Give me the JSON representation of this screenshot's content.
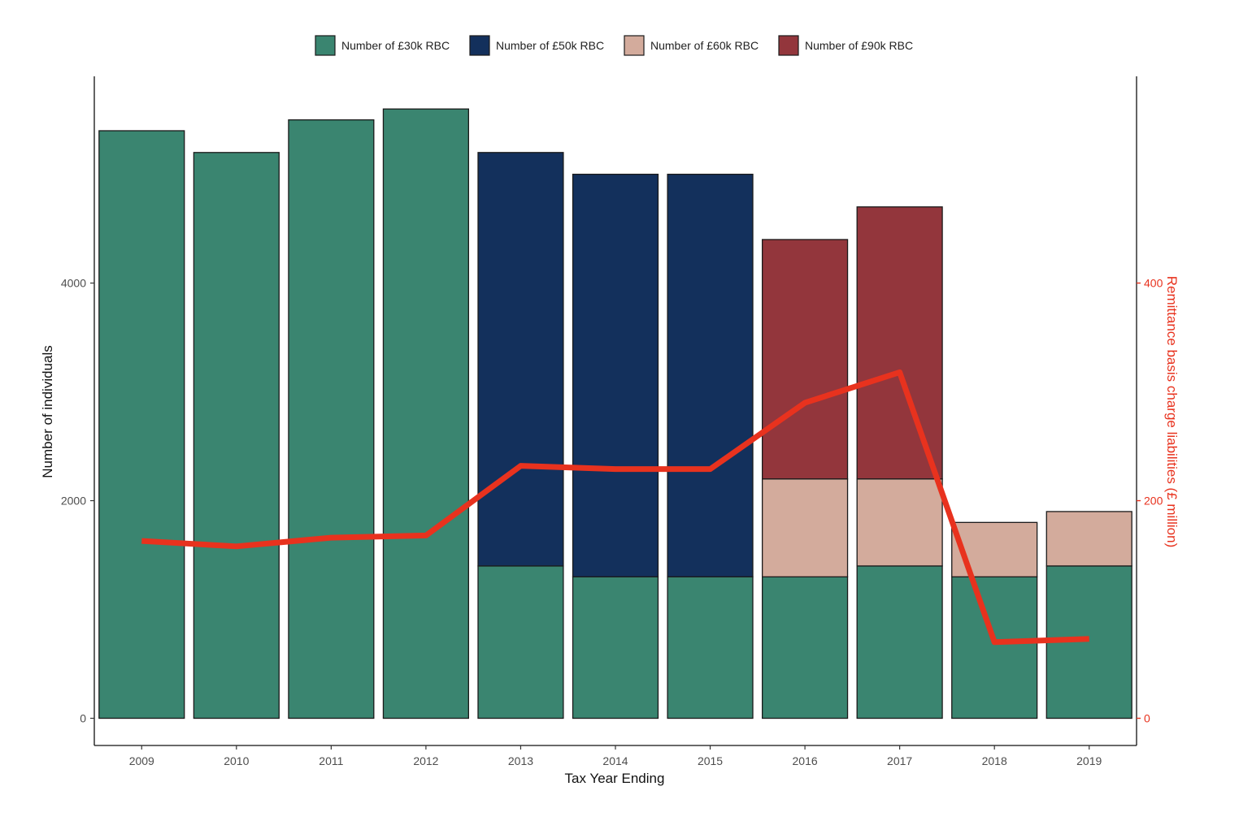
{
  "chart_data": {
    "type": "bar",
    "stacked": true,
    "title": "",
    "xlabel": "Tax Year Ending",
    "ylabel": "Number of individuals",
    "y2label": "Remittance basis charge liabilities (£ million)",
    "categories": [
      "2009",
      "2010",
      "2011",
      "2012",
      "2013",
      "2014",
      "2015",
      "2016",
      "2017",
      "2018",
      "2019"
    ],
    "ylim": [
      -250,
      5900
    ],
    "y2lim": [
      -25,
      590
    ],
    "yticks": [
      0,
      2000,
      4000
    ],
    "y2ticks": [
      0,
      200,
      400
    ],
    "series": [
      {
        "name": "Number of £30k RBC",
        "color": "#3a8570",
        "values": [
          5400,
          5200,
          5500,
          5600,
          1400,
          1300,
          1300,
          1300,
          1400,
          1300,
          1400
        ]
      },
      {
        "name": "Number of £50k RBC",
        "color": "#13305c",
        "values": [
          0,
          0,
          0,
          0,
          3800,
          3700,
          3700,
          0,
          0,
          0,
          0
        ]
      },
      {
        "name": "Number of £60k RBC",
        "color": "#d3ab9c",
        "values": [
          0,
          0,
          0,
          0,
          0,
          0,
          0,
          900,
          800,
          500,
          500
        ]
      },
      {
        "name": "Number of £90k RBC",
        "color": "#93363c",
        "values": [
          0,
          0,
          0,
          0,
          0,
          0,
          0,
          2200,
          2500,
          0,
          0
        ]
      }
    ],
    "line_series": {
      "name": "Remittance basis charge liabilities (£ million)",
      "axis": "right",
      "color": "#e8321e",
      "values": [
        163,
        158,
        166,
        168,
        232,
        229,
        229,
        290,
        318,
        70,
        73
      ]
    },
    "legend_position": "top",
    "grid": false
  }
}
